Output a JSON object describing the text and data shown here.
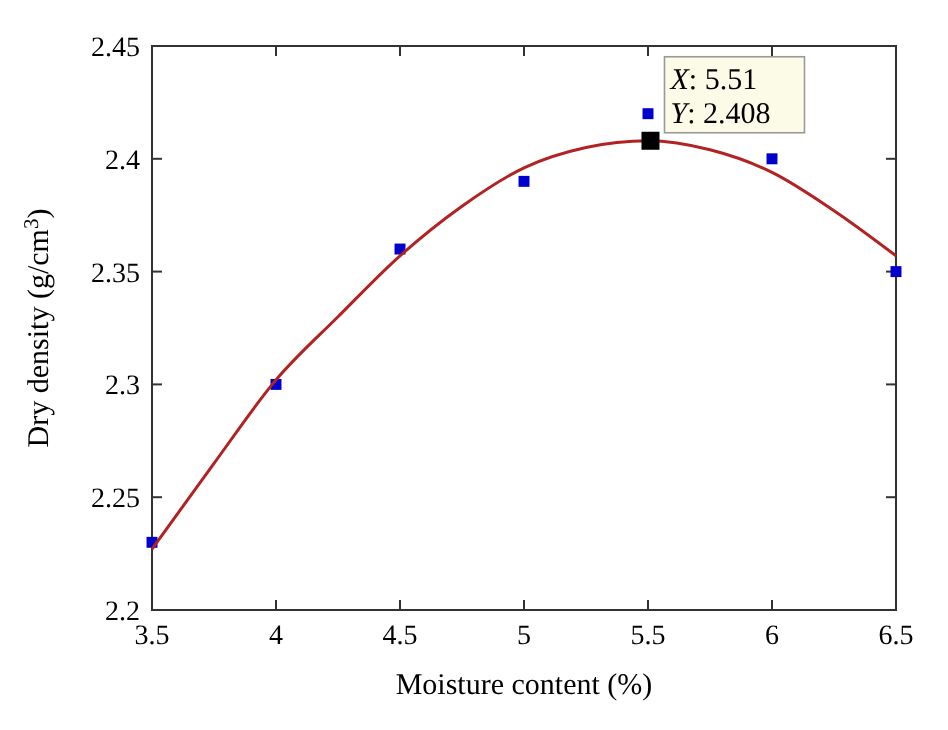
{
  "chart_data": {
    "type": "scatter",
    "xlabel": "Moisture content (%)",
    "ylabel": "Dry density (g/cm$^{3}$)",
    "x": [
      3.5,
      4,
      4.5,
      5,
      5.5,
      6,
      6.5
    ],
    "series": [
      {
        "color": "#0000cc",
        "marker": "square",
        "values": [
          2.23,
          2.3,
          2.36,
          2.39,
          2.42,
          2.4,
          2.35
        ]
      },
      {
        "type": "line",
        "color": "#b22222",
        "marker": "none",
        "x": [
          3.5,
          3.75,
          4,
          4.25,
          4.5,
          4.75,
          5,
          5.25,
          5.5,
          5.75,
          6,
          6.25,
          6.5
        ],
        "values": [
          2.227,
          2.265,
          2.302,
          2.33,
          2.357,
          2.379,
          2.396,
          2.405,
          2.408,
          2.404,
          2.394,
          2.377,
          2.357
        ]
      }
    ],
    "annotations": [
      {
        "text": "X: 5.51\nY: 2.408",
        "x": 5.51,
        "y": 2.408
      }
    ],
    "xlim": [
      3.5,
      6.5
    ],
    "xticks": [
      3.5,
      4,
      4.5,
      5,
      5.5,
      6,
      6.5
    ],
    "ylim": [
      2.2,
      2.45
    ],
    "yticks": [
      2.2,
      2.25,
      2.3,
      2.35,
      2.4,
      2.45
    ],
    "grid": false
  }
}
